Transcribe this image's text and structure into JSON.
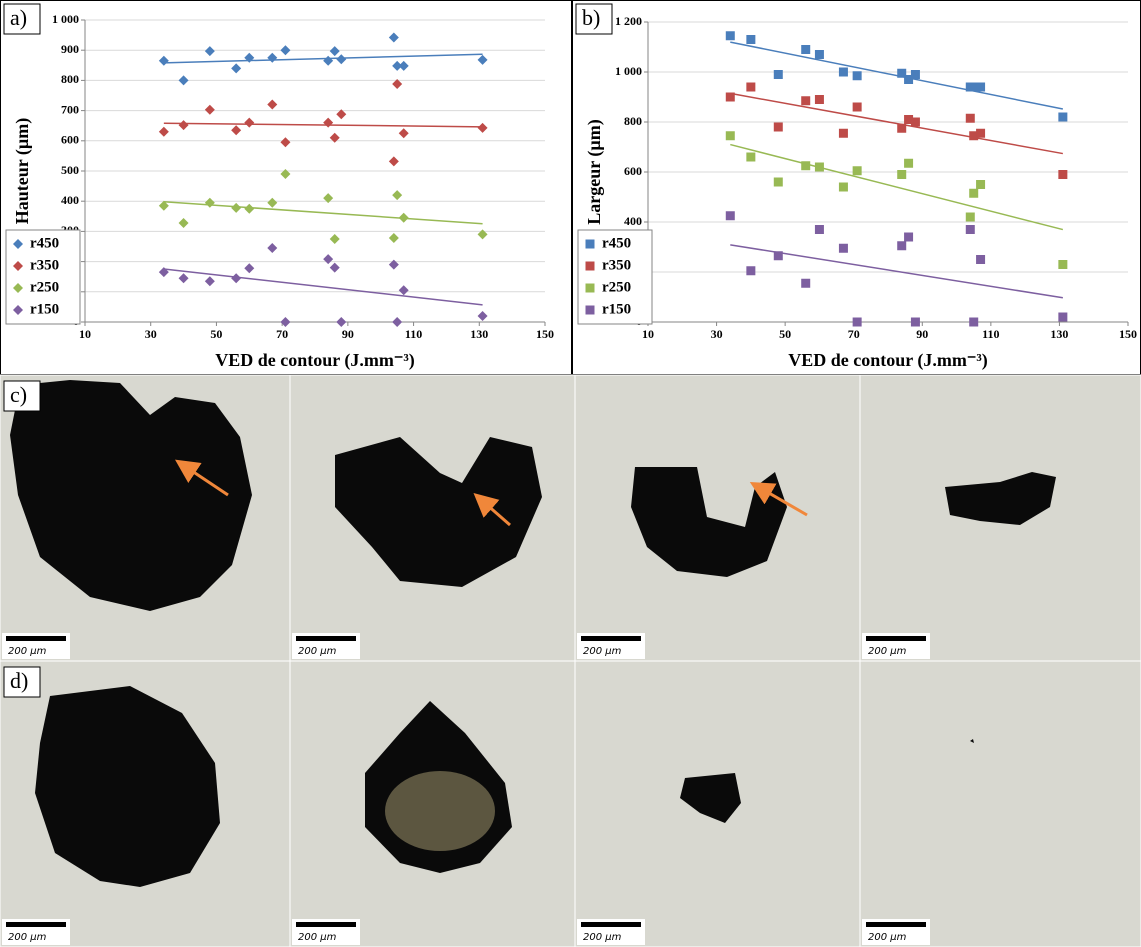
{
  "chart_data": [
    {
      "type": "scatter",
      "panel_label": "a)",
      "y_label": "Hauteur (µm)",
      "x_label": "VED de contour (J.mm⁻³)",
      "xlim": [
        10,
        150
      ],
      "xticks": [
        10,
        30,
        50,
        70,
        90,
        110,
        130,
        150
      ],
      "ylim": [
        0,
        1000
      ],
      "yticks": [
        0,
        100,
        200,
        300,
        400,
        500,
        600,
        700,
        800,
        900,
        {
          "value": 1000,
          "label": "1 000"
        }
      ],
      "grid": true,
      "marker": "diamond",
      "trendline": true,
      "legend": "lower left",
      "series": [
        {
          "name": "r450",
          "color": "#4a7ebb",
          "x": [
            34,
            40,
            48,
            56,
            60,
            67,
            71,
            84,
            86,
            88,
            104,
            105,
            107,
            131
          ],
          "values": [
            865,
            800,
            897,
            840,
            875,
            875,
            900,
            865,
            897,
            870,
            942,
            848,
            848,
            868
          ]
        },
        {
          "name": "r350",
          "color": "#be4b48",
          "x": [
            34,
            40,
            48,
            56,
            60,
            67,
            71,
            84,
            86,
            88,
            104,
            105,
            107,
            131
          ],
          "values": [
            630,
            652,
            703,
            635,
            660,
            720,
            595,
            660,
            610,
            688,
            532,
            788,
            625,
            643
          ]
        },
        {
          "name": "r250",
          "color": "#98b954",
          "x": [
            34,
            40,
            48,
            56,
            60,
            67,
            71,
            84,
            86,
            104,
            105,
            107,
            131
          ],
          "values": [
            385,
            328,
            395,
            378,
            375,
            395,
            490,
            410,
            275,
            278,
            420,
            345,
            290
          ]
        },
        {
          "name": "r150",
          "color": "#7d5fa0",
          "x": [
            34,
            40,
            48,
            56,
            60,
            67,
            71,
            84,
            86,
            88,
            104,
            105,
            107,
            131
          ],
          "values": [
            165,
            145,
            135,
            145,
            178,
            245,
            0,
            208,
            180,
            0,
            190,
            0,
            105,
            20
          ]
        }
      ]
    },
    {
      "type": "scatter",
      "panel_label": "b)",
      "y_label": "Largeur (µm)",
      "x_label": "VED de contour (J.mm⁻³)",
      "xlim": [
        10,
        150
      ],
      "xticks": [
        10,
        30,
        50,
        70,
        90,
        110,
        130,
        150
      ],
      "ylim": [
        0,
        1200
      ],
      "yticks": [
        0,
        200,
        400,
        600,
        800,
        {
          "value": 1000,
          "label": "1 000"
        },
        {
          "value": 1200,
          "label": "1 200"
        }
      ],
      "grid": true,
      "marker": "square",
      "trendline": true,
      "legend": "lower left",
      "series": [
        {
          "name": "r450",
          "color": "#4a7ebb",
          "x": [
            34,
            40,
            48,
            56,
            60,
            67,
            71,
            84,
            86,
            88,
            104,
            105,
            107,
            131
          ],
          "values": [
            1145,
            1130,
            990,
            1090,
            1070,
            1000,
            985,
            995,
            970,
            990,
            940,
            940,
            940,
            820
          ]
        },
        {
          "name": "r350",
          "color": "#be4b48",
          "x": [
            34,
            40,
            48,
            56,
            60,
            67,
            71,
            84,
            86,
            88,
            104,
            105,
            107,
            131
          ],
          "values": [
            900,
            940,
            780,
            885,
            890,
            755,
            860,
            775,
            810,
            800,
            815,
            745,
            755,
            590
          ]
        },
        {
          "name": "r250",
          "color": "#98b954",
          "x": [
            34,
            40,
            48,
            56,
            60,
            67,
            71,
            84,
            86,
            104,
            105,
            107,
            131
          ],
          "values": [
            745,
            660,
            560,
            625,
            620,
            540,
            605,
            590,
            635,
            420,
            515,
            550,
            230
          ]
        },
        {
          "name": "r150",
          "color": "#7d5fa0",
          "x": [
            34,
            40,
            48,
            56,
            60,
            67,
            71,
            84,
            86,
            88,
            104,
            105,
            107,
            131
          ],
          "values": [
            425,
            205,
            265,
            155,
            370,
            295,
            0,
            305,
            340,
            0,
            370,
            0,
            250,
            20
          ]
        }
      ]
    }
  ],
  "micrographs": {
    "rows": [
      {
        "label": "c)",
        "scale_bars": [
          "200 µm",
          "200 µm",
          "200 µm",
          "200 µm"
        ]
      },
      {
        "label": "d)",
        "scale_bars": [
          "200 µm",
          "200 µm",
          "200 µm",
          "200 µm"
        ]
      }
    ]
  }
}
